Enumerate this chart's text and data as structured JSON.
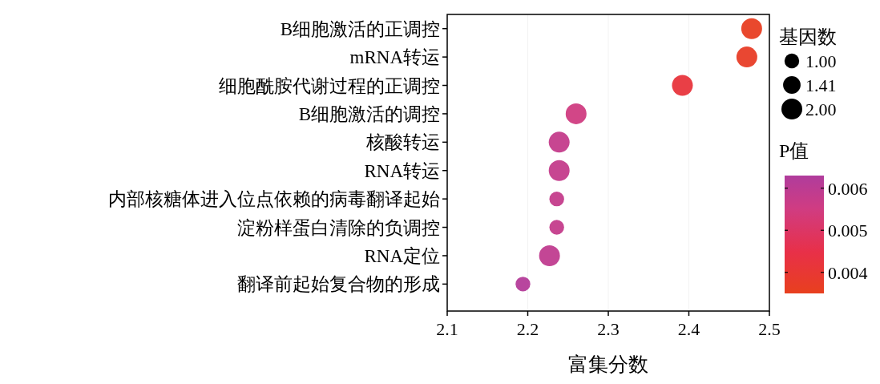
{
  "chart_data": {
    "type": "bubble",
    "orientation": "horizontal",
    "xlabel": "富集分数",
    "legend_title": "基因数",
    "clabel": "P值",
    "categories": [
      "B细胞激活的正调控",
      "mRNA转运",
      "细胞酰胺代谢过程的正调控",
      "B细胞激活的调控",
      "核酸转运",
      "RNA转运",
      "内部核糖体进入位点依赖的病毒翻译起始",
      "淀粉样蛋白清除的负调控",
      "RNA定位",
      "翻译前起始复合物的形成"
    ],
    "values": [
      2.478,
      2.472,
      2.392,
      2.26,
      2.239,
      2.239,
      2.236,
      2.236,
      2.227,
      2.194
    ],
    "sizes": [
      2,
      2,
      2,
      2,
      2,
      2,
      1,
      1,
      2,
      1
    ],
    "cvalues": [
      0.0036,
      0.0037,
      0.0042,
      0.0055,
      0.0058,
      0.0058,
      0.0058,
      0.0058,
      0.0059,
      0.0062
    ],
    "size_legend": [
      {
        "value": 1,
        "label": "1.00"
      },
      {
        "value": 1.41,
        "label": "1.41"
      },
      {
        "value": 2,
        "label": "2.00"
      }
    ],
    "xlim": [
      2.1,
      2.5
    ],
    "xticks": [
      2.1,
      2.2,
      2.3,
      2.4,
      2.5
    ],
    "clim": [
      0.0035,
      0.0063
    ],
    "cticks": [
      0.004,
      0.005,
      0.006
    ],
    "grid": "x"
  }
}
